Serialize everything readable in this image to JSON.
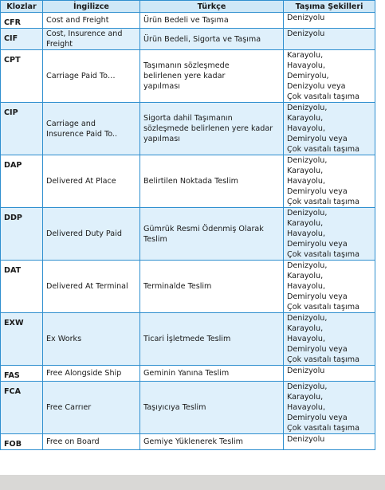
{
  "table": {
    "header": [
      "Klozlar",
      "İngilizce",
      "Türkçe",
      "Taşıma Şekilleri"
    ],
    "rows": [
      [
        [
          "CFR"
        ],
        [
          "Cost and Freight"
        ],
        [
          "Ürün Bedeli ve Taşıma"
        ],
        [
          "Denizyolu"
        ]
      ],
      [
        [
          "CIF"
        ],
        [
          "Cost, Insurence and",
          "Freight"
        ],
        [
          "Ürün Bedeli, Sigorta ve Taşıma"
        ],
        [
          "Denizyolu"
        ]
      ],
      [
        [
          "CPT"
        ],
        [
          "Carriage Paid To…"
        ],
        [
          "Taşımanın sözleşmede",
          "belirlenen yere kadar",
          "yapılması"
        ],
        [
          "Karayolu,",
          "Havayolu,",
          "Demiryolu,",
          "Denizyolu veya",
          "Çok vasıtalı taşıma"
        ]
      ],
      [
        [
          "CIP"
        ],
        [
          "Carriage and",
          "Insurence Paid To.."
        ],
        [
          "Sigorta dahil Taşımanın",
          "sözleşmede belirlenen yere kadar",
          "yapılması"
        ],
        [
          "Denizyolu,",
          "Karayolu,",
          "Havayolu,",
          "Demiryolu veya",
          "Çok vasıtalı taşıma"
        ]
      ],
      [
        [
          "DAP"
        ],
        [
          "Delivered At Place"
        ],
        [
          "Belirtilen Noktada Teslim"
        ],
        [
          "Denizyolu,",
          "Karayolu,",
          "Havayolu,",
          "Demiryolu veya",
          "Çok vasıtalı taşıma"
        ]
      ],
      [
        [
          "DDP"
        ],
        [
          "Delivered Duty Paid"
        ],
        [
          "Gümrük Resmi Ödenmiş Olarak",
          "Teslim"
        ],
        [
          "Denizyolu,",
          "Karayolu,",
          "Havayolu,",
          "Demiryolu veya",
          "Çok vasıtalı taşıma"
        ]
      ],
      [
        [
          "DAT"
        ],
        [
          "Delivered At Terminal"
        ],
        [
          "Terminalde Teslim"
        ],
        [
          "Denizyolu,",
          "Karayolu,",
          "Havayolu,",
          "Demiryolu veya",
          "Çok vasıtalı taşıma"
        ]
      ],
      [
        [
          "EXW"
        ],
        [
          "Ex Works"
        ],
        [
          "Ticari İşletmede Teslim"
        ],
        [
          "Denizyolu,",
          "Karayolu,",
          "Havayolu,",
          "Demiryolu veya",
          "Çok vasıtalı taşıma"
        ]
      ],
      [
        [
          "FAS"
        ],
        [
          "Free Alongside Ship"
        ],
        [
          "Geminin Yanına Teslim"
        ],
        [
          "Denizyolu"
        ]
      ],
      [
        [
          "FCA"
        ],
        [
          "Free Carrıer"
        ],
        [
          "Taşıyıcıya Teslim"
        ],
        [
          "Denizyolu,",
          "Karayolu,",
          "Havayolu,",
          "Demiryolu veya",
          "Çok vasıtalı taşıma"
        ]
      ],
      [
        [
          "FOB"
        ],
        [
          " Free on Board"
        ],
        [
          "Gemiye Yüklenerek Teslim"
        ],
        [
          "Denizyolu"
        ]
      ]
    ]
  }
}
